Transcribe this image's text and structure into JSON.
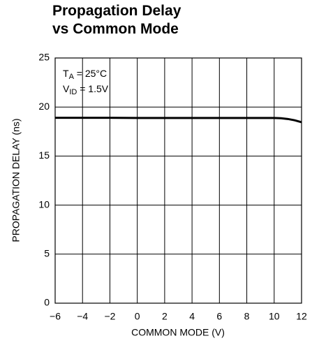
{
  "chart_data": {
    "type": "line",
    "title": [
      "Propagation Delay",
      "vs Common Mode"
    ],
    "xlabel": "COMMON MODE (V)",
    "ylabel": "PROPAGATION DELAY (ns)",
    "annotations": [
      {
        "main": "T",
        "sub": "A",
        "rest": " = 25°C"
      },
      {
        "main": "V",
        "sub": "ID",
        "rest": " = 1.5V"
      }
    ],
    "x": [
      -6,
      -4,
      -2,
      0,
      2,
      4,
      6,
      8,
      10,
      10.5,
      11,
      11.5,
      12
    ],
    "series": [
      {
        "name": "delay",
        "color": "#000000",
        "values": [
          18.9,
          18.9,
          18.9,
          18.88,
          18.88,
          18.88,
          18.88,
          18.88,
          18.88,
          18.86,
          18.78,
          18.65,
          18.45
        ]
      }
    ],
    "xlim": [
      -6,
      12
    ],
    "xticks": [
      {
        "value": -6,
        "label": "−6"
      },
      {
        "value": -4,
        "label": "−4"
      },
      {
        "value": -2,
        "label": "−2"
      },
      0,
      2,
      4,
      6,
      8,
      10,
      12
    ],
    "ylim": [
      0,
      25
    ],
    "yticks": [
      0,
      5,
      10,
      15,
      20,
      25
    ],
    "grid": true
  }
}
